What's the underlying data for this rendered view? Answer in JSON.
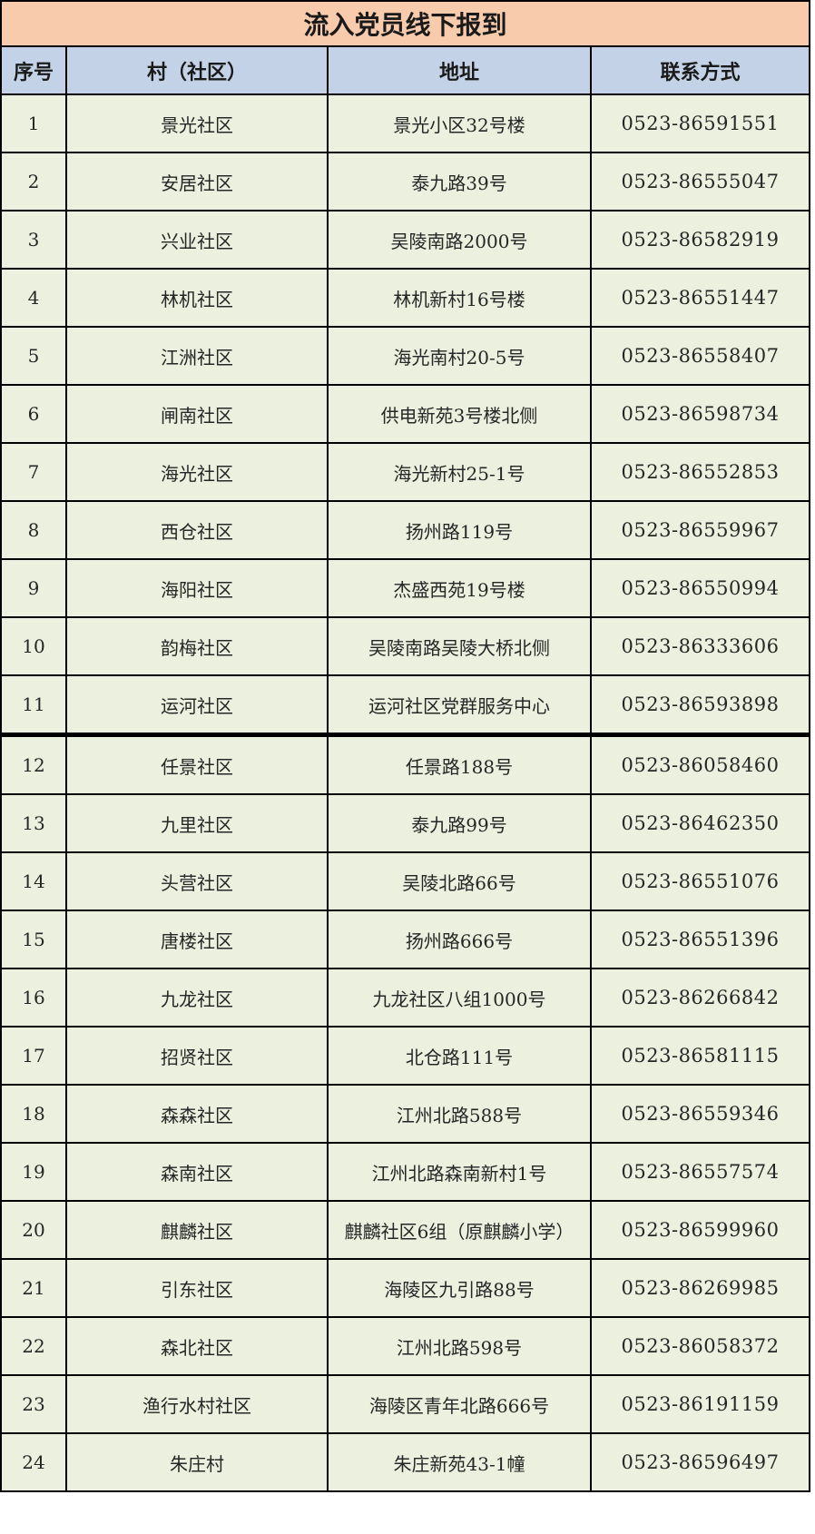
{
  "title": "流入党员线下报到",
  "table": {
    "columns": [
      "序号",
      "村（社区）",
      "地址",
      "联系方式"
    ],
    "rows": [
      {
        "no": "1",
        "community": "景光社区",
        "address": "景光小区32号楼",
        "phone": "0523-86591551"
      },
      {
        "no": "2",
        "community": "安居社区",
        "address": "泰九路39号",
        "phone": "0523-86555047"
      },
      {
        "no": "3",
        "community": "兴业社区",
        "address": "吴陵南路2000号",
        "phone": "0523-86582919"
      },
      {
        "no": "4",
        "community": "林机社区",
        "address": "林机新村16号楼",
        "phone": "0523-86551447"
      },
      {
        "no": "5",
        "community": "江洲社区",
        "address": "海光南村20-5号",
        "phone": "0523-86558407"
      },
      {
        "no": "6",
        "community": "闸南社区",
        "address": "供电新苑3号楼北侧",
        "phone": "0523-86598734"
      },
      {
        "no": "7",
        "community": "海光社区",
        "address": "海光新村25-1号",
        "phone": "0523-86552853"
      },
      {
        "no": "8",
        "community": "西仓社区",
        "address": "扬州路119号",
        "phone": "0523-86559967"
      },
      {
        "no": "9",
        "community": "海阳社区",
        "address": "杰盛西苑19号楼",
        "phone": "0523-86550994"
      },
      {
        "no": "10",
        "community": "韵梅社区",
        "address": "吴陵南路吴陵大桥北侧",
        "phone": "0523-86333606"
      },
      {
        "no": "11",
        "community": "运河社区",
        "address": "运河社区党群服务中心",
        "phone": "0523-86593898"
      },
      {
        "no": "12",
        "community": "任景社区",
        "address": "任景路188号",
        "phone": "0523-86058460"
      },
      {
        "no": "13",
        "community": "九里社区",
        "address": "泰九路99号",
        "phone": "0523-86462350"
      },
      {
        "no": "14",
        "community": "头营社区",
        "address": "吴陵北路66号",
        "phone": "0523-86551076"
      },
      {
        "no": "15",
        "community": "唐楼社区",
        "address": "扬州路666号",
        "phone": "0523-86551396"
      },
      {
        "no": "16",
        "community": "九龙社区",
        "address": "九龙社区八组1000号",
        "phone": "0523-86266842"
      },
      {
        "no": "17",
        "community": "招贤社区",
        "address": "北仓路111号",
        "phone": "0523-86581115"
      },
      {
        "no": "18",
        "community": "森森社区",
        "address": "江州北路588号",
        "phone": "0523-86559346"
      },
      {
        "no": "19",
        "community": "森南社区",
        "address": "江州北路森南新村1号",
        "phone": "0523-86557574"
      },
      {
        "no": "20",
        "community": "麒麟社区",
        "address": "麒麟社区6组（原麒麟小学）",
        "phone": "0523-86599960"
      },
      {
        "no": "21",
        "community": "引东社区",
        "address": "海陵区九引路88号",
        "phone": "0523-86269985"
      },
      {
        "no": "22",
        "community": "森北社区",
        "address": "江州北路598号",
        "phone": "0523-86058372"
      },
      {
        "no": "23",
        "community": "渔行水村社区",
        "address": "海陵区青年北路666号",
        "phone": "0523-86191159"
      },
      {
        "no": "24",
        "community": "朱庄村",
        "address": "朱庄新苑43-1幢",
        "phone": "0523-86596497"
      }
    ]
  },
  "colors": {
    "title_bg": "#f8cbad",
    "header_bg": "#c3d2e6",
    "row_bg": "#ebf1de",
    "border": "#000000",
    "text": "#262626"
  }
}
